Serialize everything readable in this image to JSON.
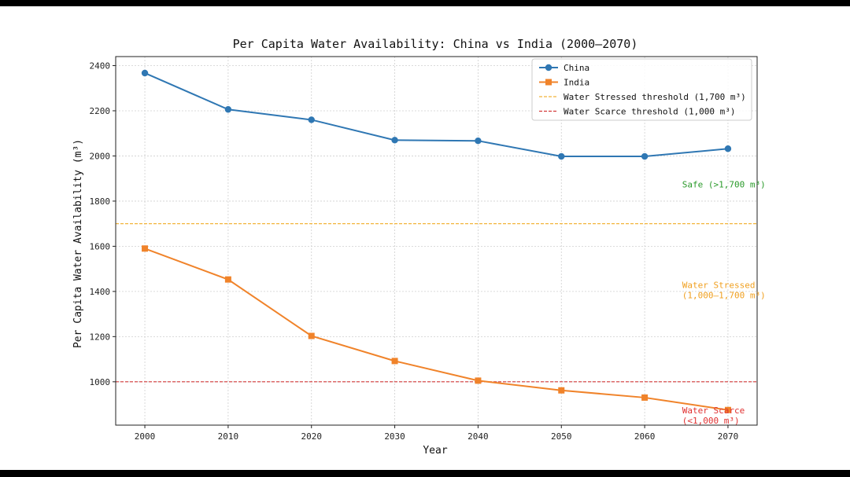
{
  "chart_data": {
    "type": "line",
    "title": "Per Capita Water Availability: China vs India (2000–2070)",
    "xlabel": "Year",
    "ylabel": "Per Capita Water Availability (m³)",
    "x": [
      2000,
      2010,
      2020,
      2030,
      2040,
      2050,
      2060,
      2070
    ],
    "xlim": [
      1996.5,
      2073.5
    ],
    "ylim": [
      808,
      2440
    ],
    "yticks": [
      1000,
      1200,
      1400,
      1600,
      1800,
      2000,
      2200,
      2400
    ],
    "grid": true,
    "legend_position": "top-right",
    "series": [
      {
        "name": "China",
        "values": [
          2367,
          2206,
          2160,
          2070,
          2067,
          1998,
          1998,
          2032
        ],
        "color": "#2f77b3",
        "marker": "circle"
      },
      {
        "name": "India",
        "values": [
          1590,
          1453,
          1203,
          1092,
          1005,
          962,
          930,
          875
        ],
        "color": "#f0832a",
        "marker": "square"
      }
    ],
    "thresholds": [
      {
        "name": "Water Stressed threshold (1,700 m³)",
        "value": 1700,
        "color": "#f2b53a"
      },
      {
        "name": "Water Scarce threshold (1,000 m³)",
        "value": 1000,
        "color": "#d33a3a"
      }
    ],
    "annotations": [
      {
        "lines": [
          "Safe (>1,700 m³)"
        ],
        "color": "#2a9a2a",
        "year": 2064.5,
        "y": 1860
      },
      {
        "lines": [
          "Water Stressed",
          "(1,000–1,700 m³)"
        ],
        "color": "#f0a020",
        "year": 2064.5,
        "y": 1415
      },
      {
        "lines": [
          "Water Scarce",
          "(<1,000 m³)"
        ],
        "color": "#e03030",
        "year": 2064.5,
        "y": 860
      }
    ]
  }
}
